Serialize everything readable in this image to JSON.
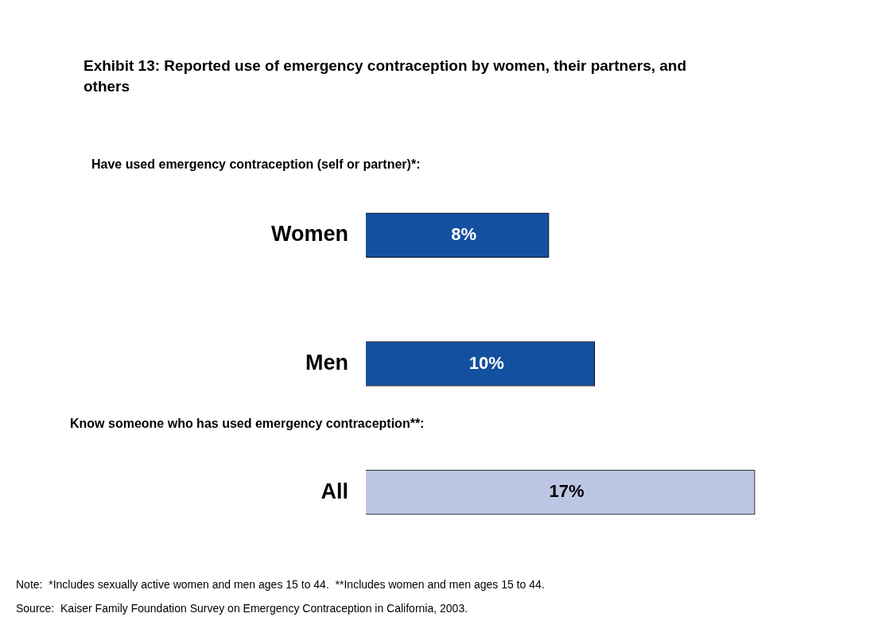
{
  "chart_data": {
    "type": "bar",
    "orientation": "horizontal",
    "title": "Exhibit 13: Reported use of emergency contraception by women, their partners, and others",
    "subtitle": "Have used emergency contraception (self or partner)*:",
    "categories": [
      "Women",
      "Men",
      "All"
    ],
    "values": [
      8,
      10,
      17
    ],
    "colors": [
      "#1450a0",
      "#1450a0",
      "#bcc5e3"
    ],
    "data_labels": true,
    "value_labels": [
      "8%",
      "10%",
      "17%"
    ],
    "tick_labels": "y",
    "grid": false,
    "legend": false,
    "annotations": [
      "Know someone who has used emergency contraception**:",
      "Note:  *Includes sexually active women and men ages 15 to 44.  **Includes women and men ages 15 to 44.",
      "Source:  Kaiser Family Foundation Survey on Emergency Contraception in California, 2003."
    ]
  }
}
